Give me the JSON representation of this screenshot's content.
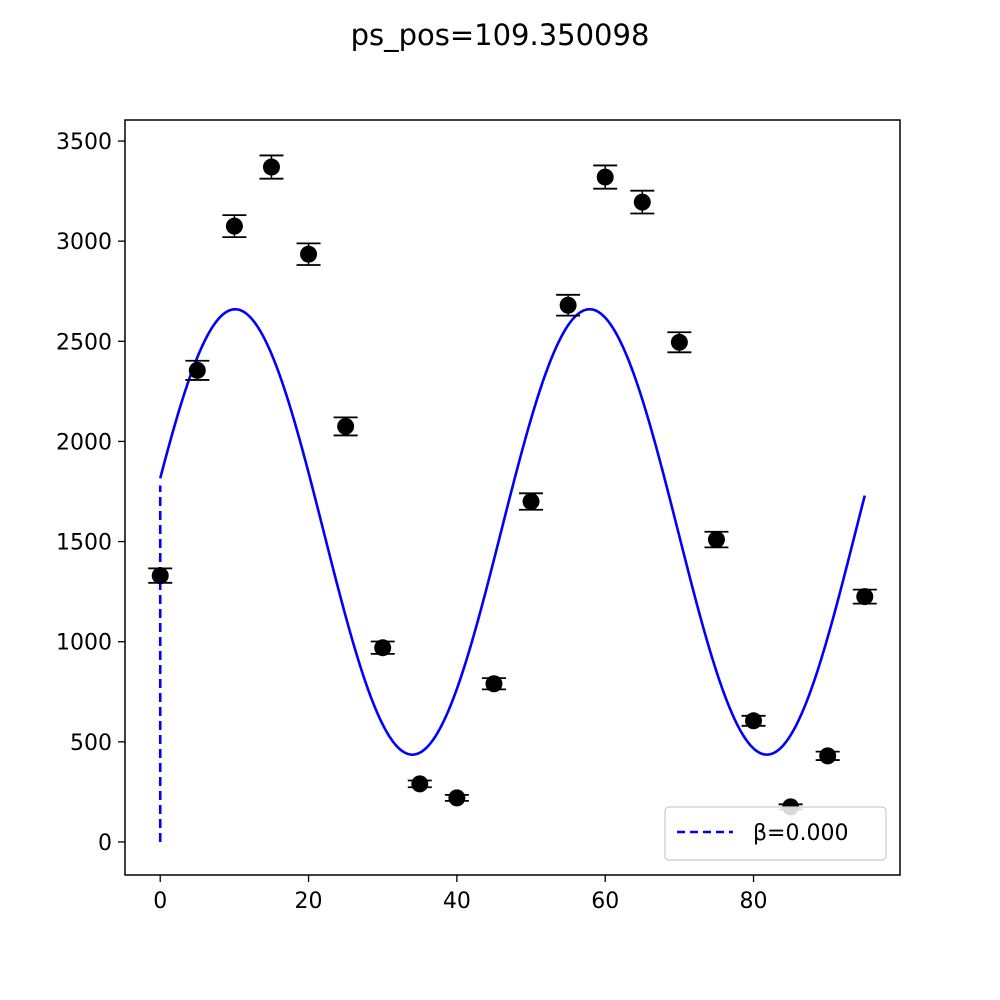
{
  "chart_data": {
    "type": "scatter",
    "title": "ps_pos=109.350098",
    "xlim": [
      -4.75,
      99.75
    ],
    "ylim": [
      -165,
      3605
    ],
    "x_ticks": [
      0,
      20,
      40,
      60,
      80
    ],
    "x_tick_labels": [
      "0",
      "20",
      "40",
      "60",
      "80"
    ],
    "y_ticks": [
      0,
      500,
      1000,
      1500,
      2000,
      2500,
      3000,
      3500
    ],
    "y_tick_labels": [
      "0",
      "500",
      "1000",
      "1500",
      "2000",
      "2500",
      "3000",
      "3500"
    ],
    "grid": false,
    "legend_position": "lower right",
    "points": {
      "color": "#000000",
      "x": [
        0,
        5,
        10,
        15,
        20,
        25,
        30,
        35,
        40,
        45,
        50,
        55,
        60,
        65,
        70,
        75,
        80,
        85,
        90,
        95
      ],
      "y": [
        1330,
        2355,
        3075,
        3370,
        2935,
        2075,
        970,
        290,
        220,
        790,
        1700,
        2680,
        3320,
        3195,
        2495,
        1510,
        605,
        175,
        430,
        1225
      ],
      "yerr": [
        36,
        48,
        55,
        58,
        54,
        45,
        31,
        17,
        15,
        28,
        41,
        52,
        58,
        57,
        50,
        39,
        25,
        13,
        21,
        35
      ]
    },
    "fit": {
      "color": "#0000ff",
      "offset": 1548,
      "amplitude": 1112,
      "period_x": 47.8,
      "peak_x": 10.1,
      "x_range": [
        0,
        95
      ]
    },
    "series": [
      {
        "name": "β=0.000",
        "style": "dashed",
        "color": "#0000ff",
        "x": [
          0,
          0
        ],
        "y": [
          0,
          1780
        ]
      }
    ]
  }
}
